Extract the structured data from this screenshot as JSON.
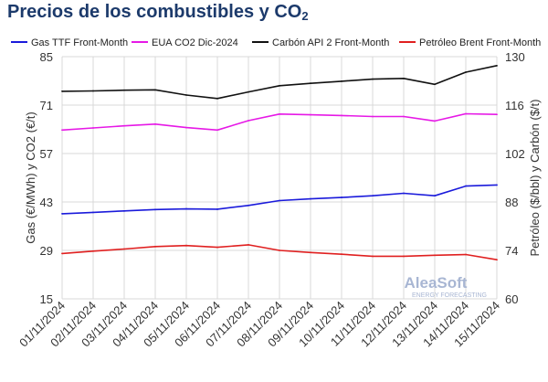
{
  "title": {
    "main": "Precios de los combustibles y CO",
    "sub": "2"
  },
  "watermark": {
    "brand": "AleaSoft",
    "tagline": "ENERGY FORECASTING"
  },
  "chart_data": {
    "type": "line",
    "x": [
      "01/11/2024",
      "02/11/2024",
      "03/11/2024",
      "04/11/2024",
      "05/11/2024",
      "06/11/2024",
      "07/11/2024",
      "08/11/2024",
      "09/11/2024",
      "10/11/2024",
      "11/11/2024",
      "12/11/2024",
      "13/11/2024",
      "14/11/2024",
      "15/11/2024"
    ],
    "y_left": {
      "label": "Gas (€/MWh) y CO2 (€/t)",
      "range": [
        15,
        85
      ],
      "ticks": [
        15,
        29,
        43,
        57,
        71,
        85
      ]
    },
    "y_right": {
      "label": "Petróleo ($/bbl) y Carbón ($/t)",
      "range": [
        60,
        130
      ],
      "ticks": [
        60,
        74,
        88,
        102,
        116,
        130
      ]
    },
    "grid": true,
    "legend": "top",
    "series": [
      {
        "name": "Gas TTF Front-Month",
        "color": "#1a1adb",
        "axis": "left",
        "values": [
          39.6,
          40.0,
          40.4,
          40.8,
          41.0,
          40.9,
          42.0,
          43.4,
          43.9,
          44.3,
          44.8,
          45.5,
          44.8,
          47.6,
          47.9
        ]
      },
      {
        "name": "EUA CO2 Dic-2024",
        "color": "#e619e6",
        "axis": "left",
        "values": [
          63.8,
          64.4,
          65.0,
          65.5,
          64.5,
          63.8,
          66.5,
          68.4,
          68.2,
          68.0,
          67.7,
          67.7,
          66.4,
          68.5,
          68.3
        ]
      },
      {
        "name": "Carbón API 2 Front-Month",
        "color": "#111111",
        "axis": "right",
        "values": [
          120.0,
          120.1,
          120.3,
          120.4,
          118.9,
          117.9,
          119.8,
          121.6,
          122.3,
          122.9,
          123.5,
          123.7,
          122.0,
          125.5,
          127.4
        ]
      },
      {
        "name": "Petróleo Brent Front-Month",
        "color": "#e02020",
        "axis": "right",
        "values": [
          73.1,
          73.8,
          74.4,
          75.1,
          75.4,
          74.9,
          75.6,
          74.0,
          73.4,
          72.9,
          72.3,
          72.3,
          72.6,
          72.8,
          71.3
        ]
      }
    ]
  }
}
